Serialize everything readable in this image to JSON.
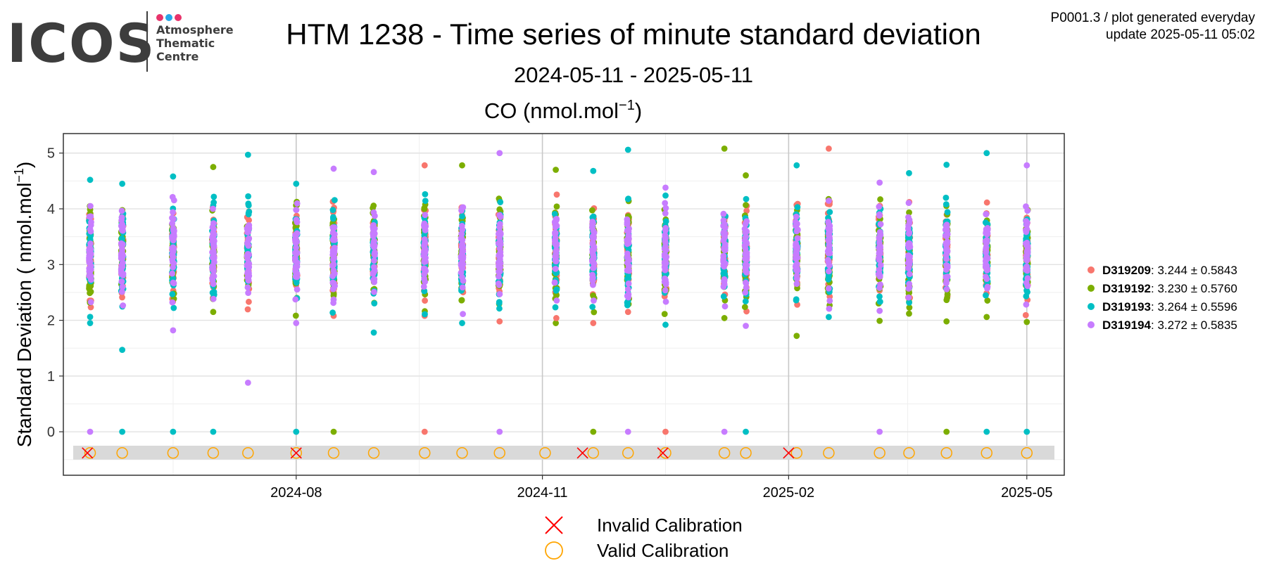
{
  "logo": {
    "wordmark": "ICOS",
    "lines": [
      "Atmosphere",
      "Thematic",
      "Centre"
    ],
    "dot_colors": [
      "#e8336b",
      "#27a7e8",
      "#e8336b"
    ]
  },
  "header": {
    "title": "HTM 1238 - Time series of minute standard deviation",
    "subtitle": "2024-05-11 - 2025-05-11",
    "meta_line1": "P0001.3 / plot generated everyday",
    "meta_line2": "update  2025-05-11 05:02"
  },
  "chart_data": {
    "type": "scatter",
    "title": "CO (nmol.mol",
    "title_superscript": "−1",
    "title_suffix": ")",
    "ylabel": "Standard Deviation ( nmol.mol",
    "ylabel_superscript": "−1",
    "ylabel_suffix": ")",
    "xlabel": "",
    "x_range": [
      "2024-05-06",
      "2025-05-15"
    ],
    "ylim": [
      -0.78,
      5.35
    ],
    "y_ticks": [
      0,
      1,
      2,
      3,
      4,
      5
    ],
    "x_ticks": [
      {
        "date": "2024-08-01",
        "label": "2024-08"
      },
      {
        "date": "2024-11-01",
        "label": "2024-11"
      },
      {
        "date": "2025-02-01",
        "label": "2025-02"
      },
      {
        "date": "2025-05-01",
        "label": "2025-05"
      }
    ],
    "grid": true,
    "legend_position": "right",
    "calibration_band": [
      -0.5,
      -0.25
    ],
    "calibration_y": -0.38,
    "series": [
      {
        "name": "D319209",
        "stats": ": 3.244 ± 0.5843",
        "color": "#F8766D"
      },
      {
        "name": "D319192",
        "stats": ": 3.230 ± 0.5760",
        "color": "#7CAE00"
      },
      {
        "name": "D319193",
        "stats": ": 3.264 ± 0.5596",
        "color": "#00BFC4"
      },
      {
        "name": "D319194",
        "stats": ": 3.272 ± 0.5835",
        "color": "#C77CFF"
      }
    ],
    "measurement_days": [
      {
        "date": "2024-05-16",
        "min": 1.95,
        "max": 4.52
      },
      {
        "date": "2024-05-28",
        "min": 1.47,
        "max": 4.45
      },
      {
        "date": "2024-06-16",
        "min": 1.82,
        "max": 4.58
      },
      {
        "date": "2024-07-01",
        "min": 2.15,
        "max": 4.75
      },
      {
        "date": "2024-07-14",
        "min": 0.88,
        "max": 4.97
      },
      {
        "date": "2024-08-01",
        "min": 1.95,
        "max": 4.45
      },
      {
        "date": "2024-08-15",
        "min": 2.08,
        "max": 4.72
      },
      {
        "date": "2024-08-30",
        "min": 1.78,
        "max": 4.66
      },
      {
        "date": "2024-09-18",
        "min": 2.08,
        "max": 4.78
      },
      {
        "date": "2024-10-02",
        "min": 1.95,
        "max": 4.78
      },
      {
        "date": "2024-10-16",
        "min": 1.98,
        "max": 5.0
      },
      {
        "date": "2024-11-06",
        "min": 1.95,
        "max": 4.7
      },
      {
        "date": "2024-11-20",
        "min": 1.95,
        "max": 4.68
      },
      {
        "date": "2024-12-03",
        "min": 2.15,
        "max": 5.06
      },
      {
        "date": "2024-12-17",
        "min": 1.92,
        "max": 4.38
      },
      {
        "date": "2025-01-08",
        "min": 2.04,
        "max": 5.08
      },
      {
        "date": "2025-01-16",
        "min": 1.9,
        "max": 4.6
      },
      {
        "date": "2025-02-04",
        "min": 1.72,
        "max": 4.78
      },
      {
        "date": "2025-02-16",
        "min": 2.06,
        "max": 5.08
      },
      {
        "date": "2025-03-07",
        "min": 1.99,
        "max": 4.47
      },
      {
        "date": "2025-03-18",
        "min": 2.12,
        "max": 4.64
      },
      {
        "date": "2025-04-01",
        "min": 1.98,
        "max": 4.79
      },
      {
        "date": "2025-04-16",
        "min": 2.06,
        "max": 5.0
      },
      {
        "date": "2025-05-01",
        "min": 1.97,
        "max": 4.78
      }
    ],
    "zero_points": [
      {
        "date": "2024-05-16",
        "series": "D319194"
      },
      {
        "date": "2024-05-28",
        "series": "D319193"
      },
      {
        "date": "2024-06-16",
        "series": "D319193"
      },
      {
        "date": "2024-07-01",
        "series": "D319193"
      },
      {
        "date": "2024-08-01",
        "series": "D319193"
      },
      {
        "date": "2024-08-15",
        "series": "D319192"
      },
      {
        "date": "2024-09-18",
        "series": "D319209"
      },
      {
        "date": "2024-10-16",
        "series": "D319194"
      },
      {
        "date": "2024-11-20",
        "series": "D319192"
      },
      {
        "date": "2024-12-03",
        "series": "D319194"
      },
      {
        "date": "2024-12-17",
        "series": "D319209"
      },
      {
        "date": "2025-01-08",
        "series": "D319194"
      },
      {
        "date": "2025-01-16",
        "series": "D319193"
      },
      {
        "date": "2025-03-07",
        "series": "D319194"
      },
      {
        "date": "2025-04-01",
        "series": "D319192"
      },
      {
        "date": "2025-04-16",
        "series": "D319193"
      },
      {
        "date": "2025-05-01",
        "series": "D319193"
      }
    ],
    "valid_calibrations": [
      "2024-05-16",
      "2024-05-28",
      "2024-06-16",
      "2024-07-01",
      "2024-07-14",
      "2024-08-01",
      "2024-08-15",
      "2024-08-30",
      "2024-09-18",
      "2024-10-02",
      "2024-10-16",
      "2024-11-02",
      "2024-11-20",
      "2024-12-03",
      "2024-12-17",
      "2025-01-08",
      "2025-01-16",
      "2025-02-04",
      "2025-02-16",
      "2025-03-07",
      "2025-03-18",
      "2025-04-01",
      "2025-04-16",
      "2025-05-01"
    ],
    "invalid_calibrations": [
      "2024-05-15",
      "2024-08-01",
      "2024-11-16",
      "2024-12-16",
      "2025-02-01"
    ],
    "calibration_legend": [
      {
        "label": "Invalid Calibration",
        "symbol": "cross",
        "color": "#ff0000"
      },
      {
        "label": "Valid Calibration",
        "symbol": "circle",
        "color": "#ffa500"
      }
    ]
  }
}
